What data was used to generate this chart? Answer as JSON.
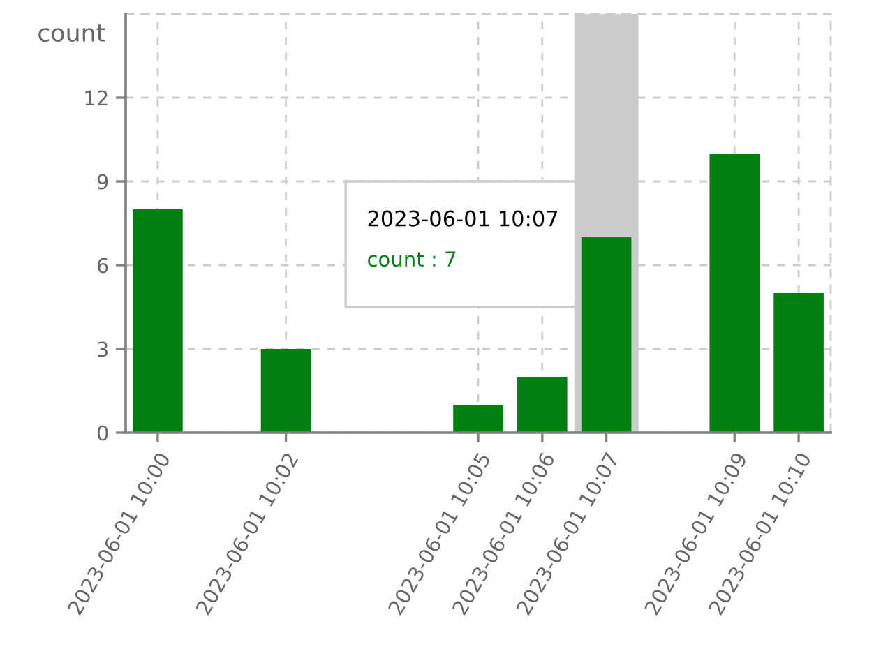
{
  "chart_data": {
    "type": "bar",
    "ylabel": "count",
    "categories": [
      "2023-06-01 10:00",
      null,
      "2023-06-01 10:02",
      null,
      null,
      "2023-06-01 10:05",
      "2023-06-01 10:06",
      "2023-06-01 10:07",
      null,
      "2023-06-01 10:09",
      "2023-06-01 10:10"
    ],
    "values": [
      8,
      null,
      3,
      null,
      null,
      1,
      2,
      7,
      null,
      10,
      5
    ],
    "color": "#038012",
    "ylim": [
      0,
      15
    ],
    "yticks": [
      0,
      3,
      6,
      9,
      12
    ],
    "grid": true,
    "bands": [
      {
        "axis": "x",
        "from": "2023-06-01 10:07",
        "to": "2023-06-01 10:07",
        "color": "#cccccc"
      }
    ],
    "annotations": [
      "2023-06-01 10:07",
      "count : 7"
    ]
  }
}
